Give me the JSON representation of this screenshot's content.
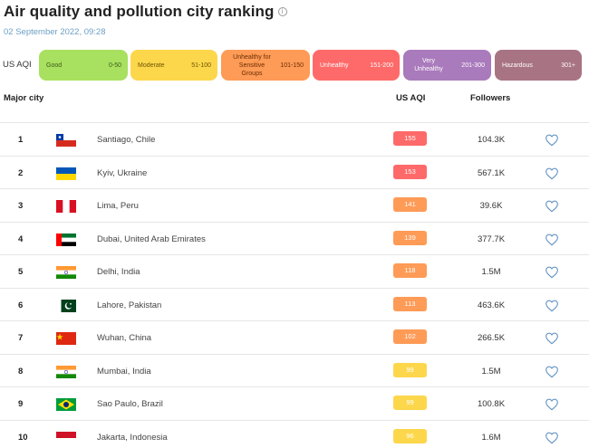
{
  "page": {
    "title": "Air quality and pollution city ranking",
    "timestamp": "02 September 2022, 09:28"
  },
  "legend": {
    "label": "US AQI",
    "levels": [
      {
        "name": "Good",
        "range": "0-50",
        "color": "#a8e05f",
        "text_color": "#3c5a1a"
      },
      {
        "name": "Moderate",
        "range": "51-100",
        "color": "#fdd74b",
        "text_color": "#6b5300"
      },
      {
        "name": "Unhealthy for Sensitive Groups",
        "range": "101-150",
        "color": "#fe9b57",
        "text_color": "#6b2d00"
      },
      {
        "name": "Unhealthy",
        "range": "151-200",
        "color": "#fe6a69",
        "text_color": "#ffffff"
      },
      {
        "name": "Very Unhealthy",
        "range": "201-300",
        "color": "#a97abc",
        "text_color": "#ffffff"
      },
      {
        "name": "Hazardous",
        "range": "301+",
        "color": "#a87383",
        "text_color": "#ffffff"
      }
    ]
  },
  "table": {
    "columns": {
      "city": "Major city",
      "aqi": "US AQI",
      "followers": "Followers"
    },
    "rows": [
      {
        "rank": "1",
        "city": "Santiago, Chile",
        "aqi": "155",
        "level": "unhealthy",
        "followers": "104.3K",
        "flag": "chile"
      },
      {
        "rank": "2",
        "city": "Kyiv, Ukraine",
        "aqi": "153",
        "level": "unhealthy",
        "followers": "567.1K",
        "flag": "ukraine"
      },
      {
        "rank": "3",
        "city": "Lima, Peru",
        "aqi": "141",
        "level": "sensitive",
        "followers": "39.6K",
        "flag": "peru"
      },
      {
        "rank": "4",
        "city": "Dubai, United Arab Emirates",
        "aqi": "139",
        "level": "sensitive",
        "followers": "377.7K",
        "flag": "uae"
      },
      {
        "rank": "5",
        "city": "Delhi, India",
        "aqi": "118",
        "level": "sensitive",
        "followers": "1.5M",
        "flag": "india"
      },
      {
        "rank": "6",
        "city": "Lahore, Pakistan",
        "aqi": "113",
        "level": "sensitive",
        "followers": "463.6K",
        "flag": "pakistan"
      },
      {
        "rank": "7",
        "city": "Wuhan, China",
        "aqi": "102",
        "level": "sensitive",
        "followers": "266.5K",
        "flag": "china"
      },
      {
        "rank": "8",
        "city": "Mumbai, India",
        "aqi": "99",
        "level": "moderate",
        "followers": "1.5M",
        "flag": "india"
      },
      {
        "rank": "9",
        "city": "Sao Paulo, Brazil",
        "aqi": "99",
        "level": "moderate",
        "followers": "100.8K",
        "flag": "brazil"
      },
      {
        "rank": "10",
        "city": "Jakarta, Indonesia",
        "aqi": "96",
        "level": "moderate",
        "followers": "1.6M",
        "flag": "indonesia"
      }
    ]
  },
  "aqi_colors": {
    "unhealthy": {
      "bg": "#fe6a69",
      "fg": "#ffffff"
    },
    "sensitive": {
      "bg": "#fe9b57",
      "fg": "#ffffff"
    },
    "moderate": {
      "bg": "#fdd74b",
      "fg": "#ffffff"
    }
  },
  "icons": {
    "info": "info-icon",
    "follow": "heart-icon"
  }
}
